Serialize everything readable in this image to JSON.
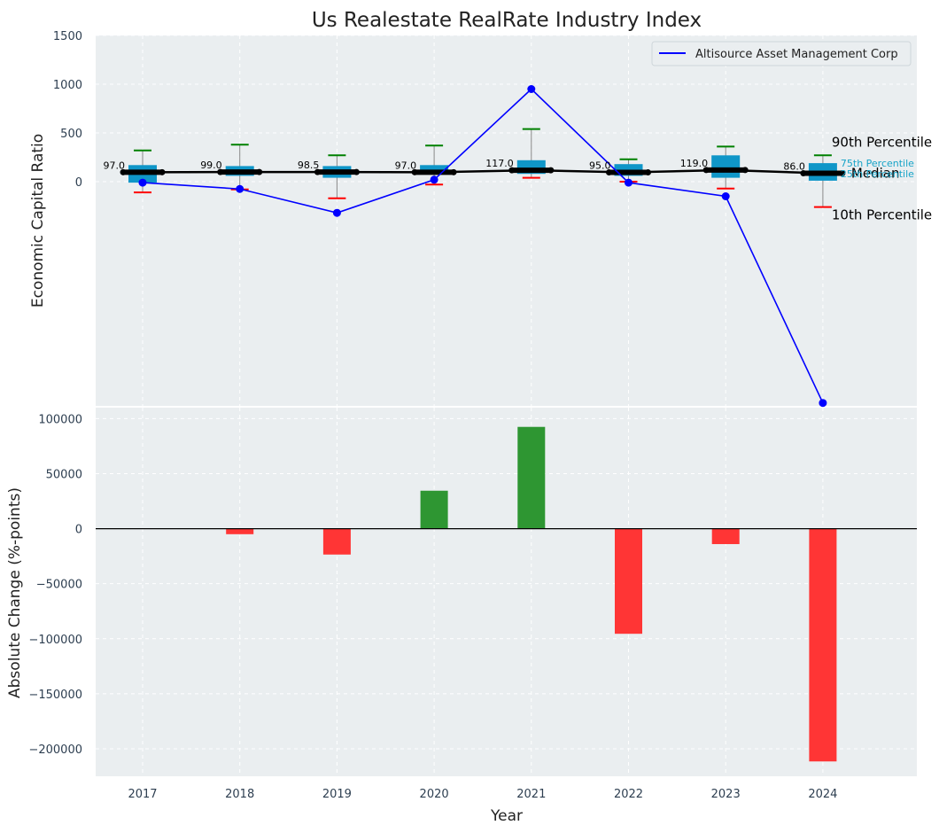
{
  "chart_data": [
    {
      "type": "box-line",
      "title": "Us Realestate RealRate Industry Index",
      "ylabel": "Economic Capital Ratio",
      "ylim": [
        -2300,
        1500
      ],
      "yticks": [
        0,
        500,
        1000,
        1500
      ],
      "categories": [
        "2017",
        "2018",
        "2019",
        "2020",
        "2021",
        "2022",
        "2023",
        "2024"
      ],
      "medians": [
        97.0,
        99.0,
        98.5,
        97.0,
        117.0,
        95.0,
        119.0,
        86.0
      ],
      "median_labels": [
        "97.0",
        "99.0",
        "98.5",
        "97.0",
        "117.0",
        "95.0",
        "119.0",
        "86.0"
      ],
      "p10": [
        -110,
        -80,
        -170,
        -30,
        40,
        0,
        -70,
        -260
      ],
      "p25": [
        -10,
        60,
        40,
        80,
        80,
        60,
        40,
        10
      ],
      "p75": [
        170,
        160,
        160,
        170,
        220,
        180,
        270,
        190
      ],
      "p90": [
        320,
        380,
        270,
        370,
        540,
        230,
        360,
        270
      ],
      "series": [
        {
          "name": "Altisource Asset Management Corp",
          "color": "#0000ff",
          "values": [
            -10,
            -75,
            -320,
            20,
            950,
            -10,
            -150,
            -2270
          ]
        }
      ],
      "percentile_labels": {
        "p90": "90th Percentile",
        "median": "Median",
        "p10": "10th Percentile",
        "p75": "75th Percentile",
        "p25": "25th Percentile"
      },
      "legend_position": "top-right",
      "grid": true
    },
    {
      "type": "bar",
      "ylabel": "Absolute Change (%-points)",
      "xlabel": "Year",
      "ylim": [
        -225000,
        110000
      ],
      "yticks": [
        -200000,
        -150000,
        -100000,
        -50000,
        0,
        50000,
        100000
      ],
      "ytick_labels": [
        "−200000",
        "−150000",
        "−100000",
        "−50000",
        "0",
        "50000",
        "100000"
      ],
      "categories": [
        "2017",
        "2018",
        "2019",
        "2020",
        "2021",
        "2022",
        "2023",
        "2024"
      ],
      "values": [
        0,
        -5000,
        -23500,
        34500,
        92500,
        -95500,
        -14000,
        -211500
      ],
      "positive_color": "#2e9632",
      "negative_color": "#ff3535",
      "grid": true
    }
  ]
}
